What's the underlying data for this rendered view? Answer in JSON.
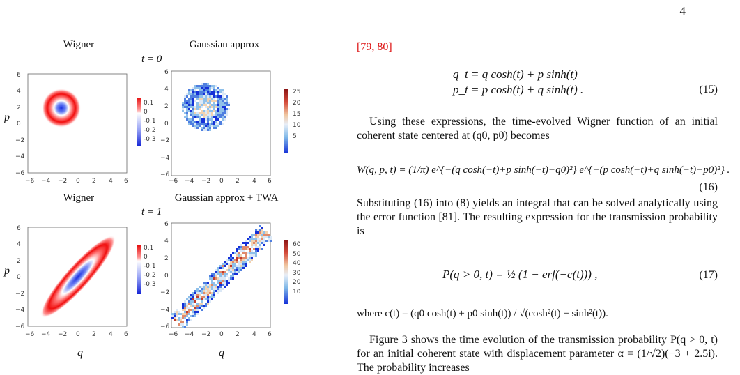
{
  "page_number": "4",
  "figure": {
    "top_left_title": "Wigner",
    "top_right_title": "Gaussian approx",
    "top_time": "t = 0",
    "bottom_left_title": "Wigner",
    "bottom_right_title": "Gaussian approx + TWA",
    "bottom_time": "t = 1",
    "ylabel": "p",
    "xlabel": "q",
    "ticks": [
      "-6",
      "-4",
      "-2",
      "0",
      "2",
      "4",
      "6"
    ],
    "wigner_colorbar_ticks": [
      "0.1",
      "0",
      "-0.1",
      "-0.2",
      "-0.3"
    ],
    "gauss_colorbar_ticks_top": [
      "25",
      "20",
      "15",
      "10",
      "5"
    ],
    "gauss_colorbar_ticks_bottom": [
      "60",
      "50",
      "40",
      "30",
      "20",
      "10"
    ]
  },
  "text": {
    "ref_line": "[79, 80]",
    "eq15_line1": "q_t  =  q cosh(t) + p sinh(t)",
    "eq15_line2": "p_t  =  p cosh(t) + q sinh(t) .",
    "eq15_num": "(15)",
    "para1": "Using these expressions, the time-evolved Wigner function of an initial coherent state centered at (q0, p0) becomes",
    "eq16": "W(q, p, t) = (1/π) e^{−(q cosh(−t)+p sinh(−t)−q0)²} e^{−(p cosh(−t)+q sinh(−t)−p0)²} .",
    "eq16_num": "(16)",
    "para2": "Substituting (16) into (8) yields an integral that can be solved analytically using the error function [81]. The resulting expression for the transmission probability is",
    "eq17": "P(q > 0, t)  =  ½ (1 − erf(−c(t))) ,",
    "eq17_num": "(17)",
    "where_line": "where c(t) = (q0 cosh(t) + p0 sinh(t)) / √(cosh²(t) + sinh²(t)).",
    "para3": "Figure 3 shows the time evolution of the transmission probability P(q > 0, t) for an initial coherent state with displacement parameter α = (1/√2)(−3 + 2.5i). The probability increases"
  }
}
